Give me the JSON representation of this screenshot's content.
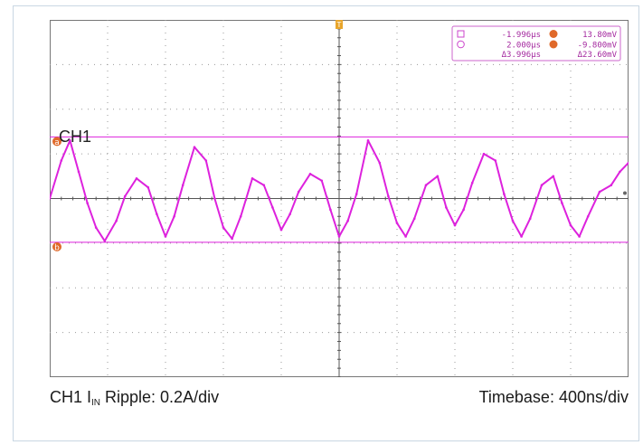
{
  "chart_data": {
    "type": "line",
    "title": "",
    "channel_label": "CH1",
    "trigger_marker": "T",
    "cursor_a_label": "a",
    "cursor_b_label": "b",
    "grid": true,
    "divisions": {
      "x": 10,
      "y": 8
    },
    "x_range_div": [
      -5,
      5
    ],
    "y_range_div": [
      -4,
      4
    ],
    "cursor_a_level_div": 1.38,
    "cursor_b_level_div": -0.98,
    "series": [
      {
        "color": "#dd22dd",
        "x_div": [
          -5.0,
          -4.8,
          -4.65,
          -4.5,
          -4.35,
          -4.2,
          -4.05,
          -3.85,
          -3.7,
          -3.5,
          -3.3,
          -3.15,
          -3.0,
          -2.85,
          -2.7,
          -2.5,
          -2.3,
          -2.15,
          -2.0,
          -1.85,
          -1.7,
          -1.5,
          -1.3,
          -1.15,
          -1.0,
          -0.85,
          -0.7,
          -0.5,
          -0.3,
          -0.15,
          0.0,
          0.15,
          0.3,
          0.5,
          0.7,
          0.85,
          1.0,
          1.15,
          1.3,
          1.5,
          1.7,
          1.85,
          2.0,
          2.15,
          2.3,
          2.5,
          2.7,
          2.85,
          3.0,
          3.15,
          3.3,
          3.5,
          3.7,
          3.85,
          4.0,
          4.15,
          4.3,
          4.5,
          4.7,
          4.85,
          5.0
        ],
        "y_div": [
          0.0,
          0.85,
          1.3,
          0.6,
          -0.1,
          -0.65,
          -0.95,
          -0.5,
          0.05,
          0.45,
          0.25,
          -0.35,
          -0.85,
          -0.4,
          0.3,
          1.15,
          0.85,
          0.0,
          -0.65,
          -0.9,
          -0.4,
          0.45,
          0.3,
          -0.2,
          -0.7,
          -0.35,
          0.15,
          0.55,
          0.4,
          -0.25,
          -0.85,
          -0.5,
          0.1,
          1.3,
          0.8,
          0.05,
          -0.55,
          -0.85,
          -0.45,
          0.3,
          0.5,
          -0.2,
          -0.6,
          -0.25,
          0.35,
          1.0,
          0.85,
          0.1,
          -0.5,
          -0.85,
          -0.45,
          0.3,
          0.5,
          -0.1,
          -0.6,
          -0.85,
          -0.4,
          0.15,
          0.3,
          0.6,
          0.8
        ]
      }
    ],
    "cursor_readout": {
      "t1": "-1.996µs",
      "t2": "2.000µs",
      "dt": "Δ3.996µs",
      "va": "13.80mV",
      "vb": "-9.800mV",
      "dv": "Δ23.60mV"
    },
    "caption": {
      "left_prefix": "CH1 I",
      "left_subscript": "IN",
      "left_suffix": " Ripple: 0.2A/div",
      "right": "Timebase: 400ns/div"
    }
  }
}
